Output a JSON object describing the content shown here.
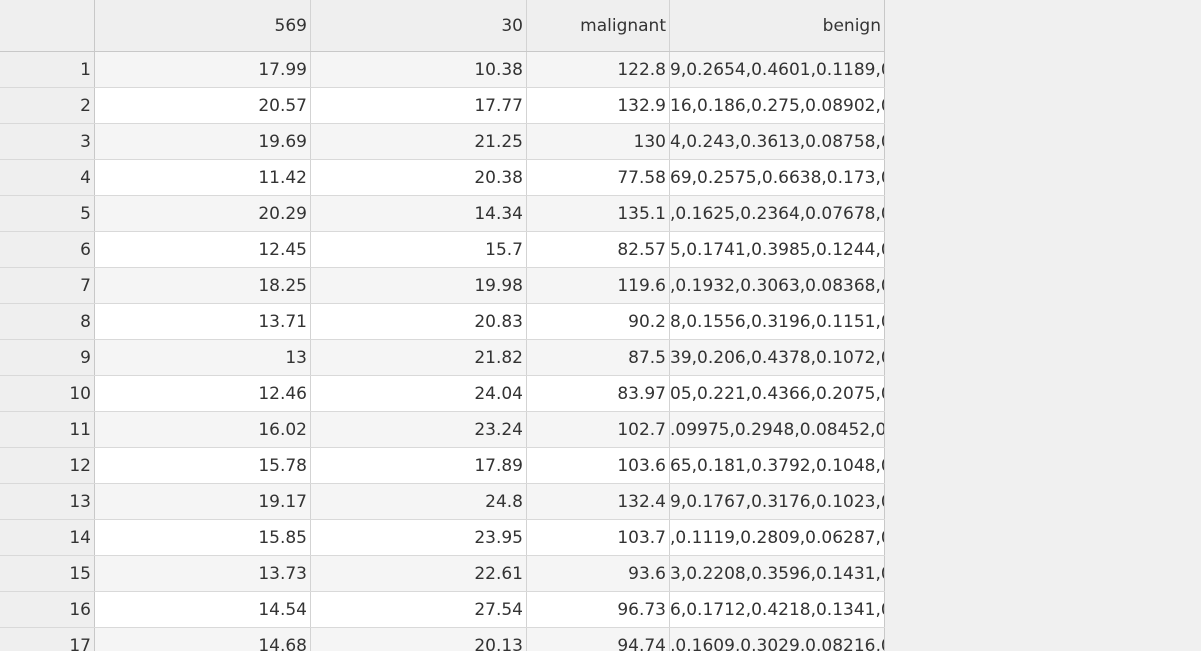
{
  "table": {
    "headers": [
      "",
      "569",
      "30",
      "malignant",
      "benign"
    ],
    "rows": [
      {
        "n": "1",
        "a": "17.99",
        "b": "10.38",
        "c": "122.8",
        "d": "9,0.2654,0.4601,0.1189,0"
      },
      {
        "n": "2",
        "a": "20.57",
        "b": "17.77",
        "c": "132.9",
        "d": "16,0.186,0.275,0.08902,0"
      },
      {
        "n": "3",
        "a": "19.69",
        "b": "21.25",
        "c": "130",
        "d": "4,0.243,0.3613,0.08758,0"
      },
      {
        "n": "4",
        "a": "11.42",
        "b": "20.38",
        "c": "77.58",
        "d": "69,0.2575,0.6638,0.173,0"
      },
      {
        "n": "5",
        "a": "20.29",
        "b": "14.34",
        "c": "135.1",
        "d": ",0.1625,0.2364,0.07678,0"
      },
      {
        "n": "6",
        "a": "12.45",
        "b": "15.7",
        "c": "82.57",
        "d": "5,0.1741,0.3985,0.1244,0"
      },
      {
        "n": "7",
        "a": "18.25",
        "b": "19.98",
        "c": "119.6",
        "d": ",0.1932,0.3063,0.08368,0"
      },
      {
        "n": "8",
        "a": "13.71",
        "b": "20.83",
        "c": "90.2",
        "d": "8,0.1556,0.3196,0.1151,0"
      },
      {
        "n": "9",
        "a": "13",
        "b": "21.82",
        "c": "87.5",
        "d": "39,0.206,0.4378,0.1072,0"
      },
      {
        "n": "10",
        "a": "12.46",
        "b": "24.04",
        "c": "83.97",
        "d": "05,0.221,0.4366,0.2075,0"
      },
      {
        "n": "11",
        "a": "16.02",
        "b": "23.24",
        "c": "102.7",
        "d": ".09975,0.2948,0.08452,0"
      },
      {
        "n": "12",
        "a": "15.78",
        "b": "17.89",
        "c": "103.6",
        "d": "65,0.181,0.3792,0.1048,0"
      },
      {
        "n": "13",
        "a": "19.17",
        "b": "24.8",
        "c": "132.4",
        "d": "9,0.1767,0.3176,0.1023,0"
      },
      {
        "n": "14",
        "a": "15.85",
        "b": "23.95",
        "c": "103.7",
        "d": ",0.1119,0.2809,0.06287,0"
      },
      {
        "n": "15",
        "a": "13.73",
        "b": "22.61",
        "c": "93.6",
        "d": "3,0.2208,0.3596,0.1431,0"
      },
      {
        "n": "16",
        "a": "14.54",
        "b": "27.54",
        "c": "96.73",
        "d": "6,0.1712,0.4218,0.1341,0"
      },
      {
        "n": "17",
        "a": "14.68",
        "b": "20.13",
        "c": "94.74",
        "d": ",0.1609,0.3029,0.08216,0"
      }
    ]
  }
}
